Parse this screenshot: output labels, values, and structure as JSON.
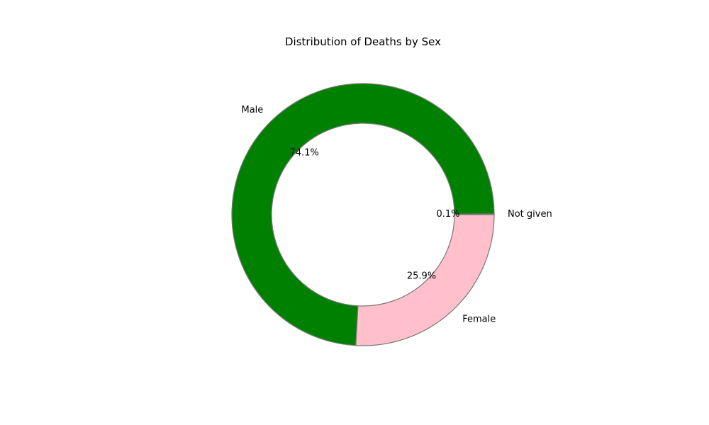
{
  "chart_data": {
    "type": "pie",
    "variant": "donut",
    "title": "Distribution of Deaths by Sex",
    "start_angle_deg": 0,
    "direction": "counterclockwise",
    "edge_color": "#777777",
    "slices": [
      {
        "label": "Not given",
        "value": 0.1,
        "pct_text": "0.1%",
        "color": "#808080"
      },
      {
        "label": "Male",
        "value": 74.1,
        "pct_text": "74.1%",
        "color": "#008000"
      },
      {
        "label": "Female",
        "value": 25.9,
        "pct_text": "25.9%",
        "color": "#FFC0CB"
      }
    ],
    "legend": "none"
  }
}
